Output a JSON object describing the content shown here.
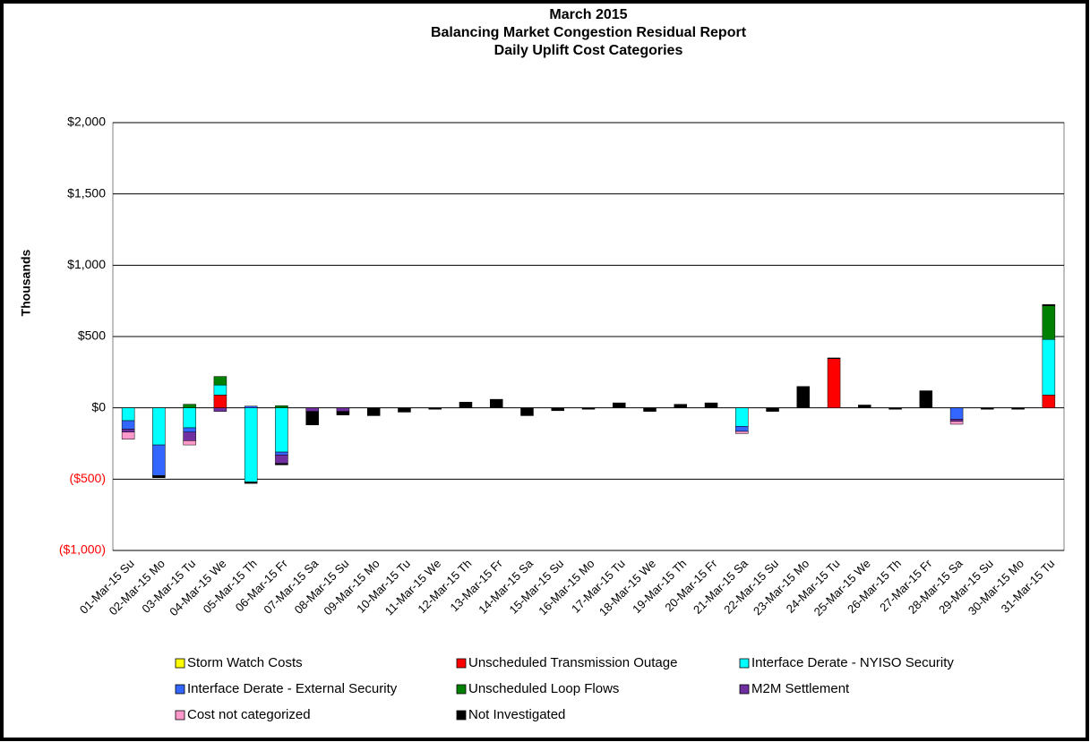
{
  "chart_data": {
    "type": "stacked_bar",
    "title": [
      "March 2015",
      "Balancing Market Congestion Residual Report",
      "Daily Uplift Cost Categories"
    ],
    "y_label": "Thousands",
    "categories": [
      "01-Mar-15 Su",
      "02-Mar-15 Mo",
      "03-Mar-15 Tu",
      "04-Mar-15 We",
      "05-Mar-15 Th",
      "06-Mar-15 Fr",
      "07-Mar-15 Sa",
      "08-Mar-15 Su",
      "09-Mar-15 Mo",
      "10-Mar-15 Tu",
      "11-Mar-15 We",
      "12-Mar-15 Th",
      "13-Mar-15 Fr",
      "14-Mar-15 Sa",
      "15-Mar-15 Su",
      "16-Mar-15 Mo",
      "17-Mar-15 Tu",
      "18-Mar-15 We",
      "19-Mar-15 Th",
      "20-Mar-15 Fr",
      "21-Mar-15 Sa",
      "22-Mar-15 Su",
      "23-Mar-15 Mo",
      "24-Mar-15 Tu",
      "25-Mar-15 We",
      "26-Mar-15 Th",
      "27-Mar-15 Fr",
      "28-Mar-15 Sa",
      "29-Mar-15 Su",
      "30-Mar-15 Mo",
      "31-Mar-15 Tu"
    ],
    "series": [
      {
        "name": "Storm Watch Costs",
        "color": "#ffff00",
        "values": [
          0,
          0,
          0,
          0,
          0,
          0,
          0,
          0,
          0,
          0,
          0,
          0,
          0,
          0,
          0,
          0,
          0,
          0,
          0,
          0,
          0,
          0,
          0,
          0,
          0,
          0,
          0,
          0,
          0,
          0,
          0
        ]
      },
      {
        "name": "Unscheduled Transmission Outage",
        "color": "#ff0000",
        "values": [
          0,
          0,
          0,
          90,
          0,
          0,
          0,
          0,
          0,
          0,
          0,
          0,
          0,
          0,
          0,
          0,
          0,
          0,
          0,
          0,
          0,
          0,
          0,
          345,
          0,
          0,
          0,
          0,
          0,
          0,
          90
        ]
      },
      {
        "name": "Interface Derate - NYISO Security",
        "color": "#00ffff",
        "values": [
          -90,
          -260,
          -140,
          70,
          -520,
          -310,
          0,
          0,
          0,
          0,
          0,
          0,
          0,
          0,
          0,
          0,
          0,
          0,
          0,
          0,
          -130,
          0,
          0,
          0,
          0,
          0,
          0,
          0,
          0,
          0,
          390
        ]
      },
      {
        "name": "Interface Derate - External Security",
        "color": "#3366ff",
        "values": [
          -60,
          -215,
          -30,
          0,
          12,
          -20,
          0,
          0,
          0,
          0,
          0,
          0,
          0,
          0,
          0,
          0,
          0,
          0,
          0,
          0,
          -35,
          0,
          0,
          0,
          0,
          0,
          0,
          -80,
          0,
          0,
          0
        ]
      },
      {
        "name": "Unscheduled Loop Flows",
        "color": "#008000",
        "values": [
          0,
          0,
          25,
          60,
          0,
          15,
          0,
          0,
          0,
          0,
          0,
          0,
          0,
          0,
          0,
          0,
          0,
          0,
          0,
          0,
          0,
          0,
          0,
          0,
          0,
          0,
          0,
          0,
          0,
          0,
          235
        ]
      },
      {
        "name": "M2M Settlement",
        "color": "#7030a0",
        "values": [
          -20,
          0,
          -60,
          -25,
          0,
          -60,
          -25,
          -25,
          0,
          0,
          0,
          0,
          0,
          0,
          0,
          0,
          0,
          0,
          0,
          0,
          0,
          0,
          0,
          0,
          0,
          0,
          0,
          -15,
          0,
          0,
          0
        ]
      },
      {
        "name": "Cost not categorized",
        "color": "#ff99cc",
        "values": [
          -50,
          0,
          -30,
          0,
          0,
          0,
          0,
          0,
          0,
          0,
          0,
          0,
          0,
          0,
          0,
          0,
          0,
          0,
          0,
          0,
          -15,
          0,
          0,
          0,
          0,
          0,
          0,
          -20,
          0,
          0,
          0
        ]
      },
      {
        "name": "Not Investigated",
        "color": "#000000",
        "values": [
          0,
          -15,
          0,
          0,
          -10,
          -10,
          -95,
          -25,
          -55,
          -30,
          -10,
          40,
          60,
          -55,
          -20,
          -10,
          35,
          -25,
          25,
          35,
          0,
          -25,
          150,
          5,
          20,
          -10,
          120,
          0,
          -10,
          -10,
          10
        ]
      }
    ],
    "ylim": [
      -1000,
      2000
    ],
    "yticks": [
      {
        "value": -1000,
        "label": "($1,000)"
      },
      {
        "value": -500,
        "label": "($500)"
      },
      {
        "value": 0,
        "label": "$0"
      },
      {
        "value": 500,
        "label": "$500"
      },
      {
        "value": 1000,
        "label": "$1,000"
      },
      {
        "value": 1500,
        "label": "$1,500"
      },
      {
        "value": 2000,
        "label": "$2,000"
      }
    ],
    "negative_tick_color": "#ff0000",
    "grid": true,
    "legend": "bottom"
  }
}
